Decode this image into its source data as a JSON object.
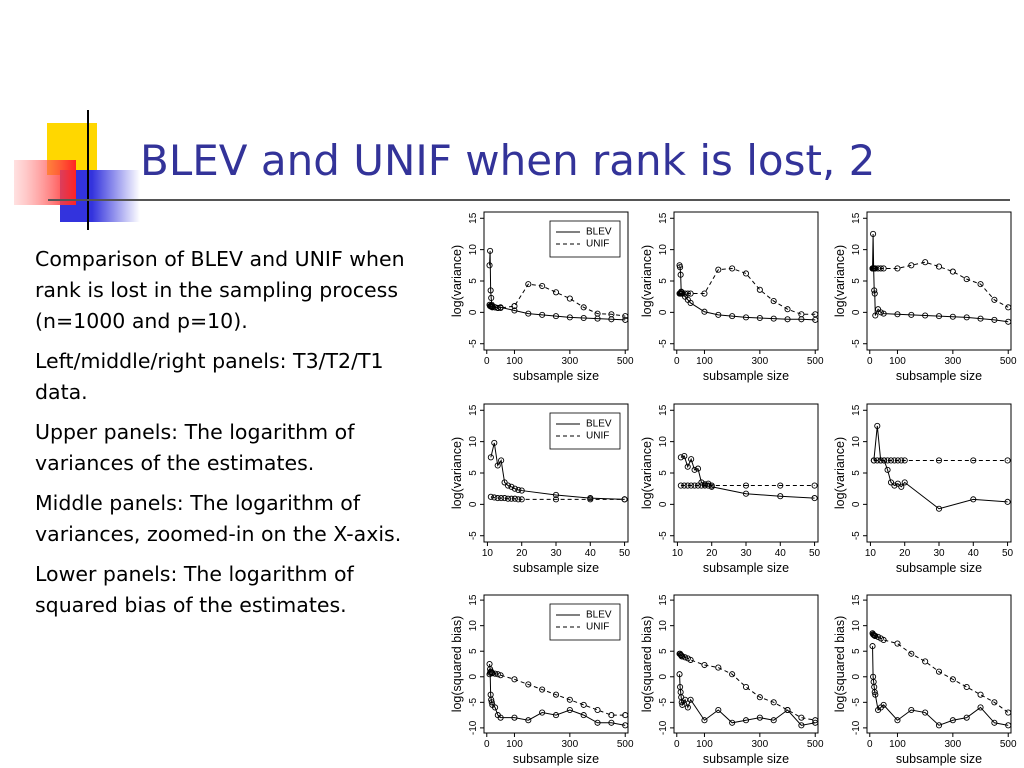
{
  "title": "BLEV and UNIF when rank is lost, 2",
  "paragraphs": [
    "Comparison of BLEV and UNIF when rank is lost in the sampling process (n=1000 and p=10).",
    "Left/middle/right panels: T3/T2/T1 data.",
    "Upper panels: The logarithm of variances of the estimates.",
    "Middle panels: The logarithm of variances, zoomed-in on the X-axis.",
    "Lower panels: The logarithm of squared bias of the estimates."
  ],
  "chart_data": [
    {
      "type": "line",
      "xlabel": "subsample size",
      "ylabel": "log(variance)",
      "x": [
        10,
        12,
        14,
        16,
        18,
        20,
        30,
        40,
        50,
        100,
        150,
        200,
        250,
        300,
        350,
        400,
        450,
        500
      ],
      "xlim": [
        -10,
        510
      ],
      "xticks": [
        0,
        100,
        300,
        500
      ],
      "ylim": [
        -6,
        16
      ],
      "yticks": [
        -5,
        0,
        5,
        10,
        15
      ],
      "series": [
        {
          "name": "BLEV",
          "color": "#000000",
          "dashed": false,
          "values": [
            7.5,
            9.8,
            3.5,
            2.3,
            1.2,
            1.0,
            0.8,
            0.7,
            0.8,
            0.3,
            -0.2,
            -0.4,
            -0.6,
            -0.8,
            -0.9,
            -1.0,
            -1.1,
            -1.2
          ]
        },
        {
          "name": "UNIF",
          "color": "#000000",
          "dashed": true,
          "values": [
            1.2,
            1.0,
            1.0,
            0.9,
            0.9,
            0.8,
            0.8,
            0.7,
            0.7,
            1.0,
            4.5,
            4.2,
            3.2,
            2.2,
            0.8,
            -0.2,
            -0.3,
            -0.6
          ]
        }
      ]
    },
    {
      "type": "line",
      "xlabel": "subsample size",
      "ylabel": "log(variance)",
      "x": [
        10,
        12,
        14,
        16,
        18,
        20,
        30,
        40,
        50,
        100,
        150,
        200,
        250,
        300,
        350,
        400,
        450,
        500
      ],
      "xlim": [
        -10,
        510
      ],
      "xticks": [
        0,
        100,
        300,
        500
      ],
      "ylim": [
        -6,
        16
      ],
      "yticks": [
        -5,
        0,
        5,
        10,
        15
      ],
      "series": [
        {
          "color": "#000000",
          "dashed": false,
          "values": [
            7.5,
            7.2,
            6.0,
            3.3,
            3.2,
            3.0,
            2.5,
            2.0,
            1.5,
            0.1,
            -0.4,
            -0.6,
            -0.8,
            -0.9,
            -1.0,
            -1.1,
            -1.1,
            -1.2
          ]
        },
        {
          "color": "#000000",
          "dashed": true,
          "values": [
            3.0,
            3.0,
            3.0,
            3.0,
            3.0,
            3.0,
            3.0,
            3.0,
            3.0,
            3.0,
            6.8,
            7.0,
            6.2,
            3.6,
            1.8,
            0.5,
            -0.3,
            -0.3
          ]
        }
      ]
    },
    {
      "type": "line",
      "xlabel": "subsample size",
      "ylabel": "log(variance)",
      "x": [
        10,
        12,
        14,
        16,
        18,
        20,
        30,
        40,
        50,
        100,
        150,
        200,
        250,
        300,
        350,
        400,
        450,
        500
      ],
      "xlim": [
        -10,
        510
      ],
      "xticks": [
        0,
        100,
        300,
        500
      ],
      "ylim": [
        -6,
        16
      ],
      "yticks": [
        -5,
        0,
        5,
        10,
        15
      ],
      "series": [
        {
          "color": "#000000",
          "dashed": false,
          "values": [
            7.0,
            12.5,
            7.0,
            3.5,
            3.0,
            -0.5,
            0.5,
            0.0,
            -0.2,
            -0.3,
            -0.4,
            -0.5,
            -0.6,
            -0.7,
            -0.8,
            -1.0,
            -1.2,
            -1.5
          ]
        },
        {
          "color": "#000000",
          "dashed": true,
          "values": [
            7.0,
            7.0,
            7.0,
            7.0,
            7.0,
            7.0,
            7.0,
            7.0,
            7.0,
            7.0,
            7.5,
            8.0,
            7.3,
            6.5,
            5.3,
            4.5,
            2.0,
            0.8
          ]
        }
      ]
    },
    {
      "type": "line",
      "xlabel": "subsample size",
      "ylabel": "log(variance)",
      "x": [
        11,
        12,
        13,
        14,
        15,
        16,
        17,
        18,
        19,
        20,
        30,
        40,
        50
      ],
      "xlim": [
        9,
        51
      ],
      "xticks": [
        10,
        20,
        30,
        40,
        50
      ],
      "ylim": [
        -6,
        16
      ],
      "yticks": [
        -5,
        0,
        5,
        10,
        15
      ],
      "series": [
        {
          "name": "BLEV",
          "color": "#000000",
          "dashed": false,
          "values": [
            7.5,
            9.8,
            6.2,
            7.0,
            3.5,
            3.0,
            2.8,
            2.5,
            2.3,
            2.2,
            1.5,
            1.0,
            0.8
          ]
        },
        {
          "name": "UNIF",
          "color": "#000000",
          "dashed": true,
          "values": [
            1.2,
            1.1,
            1.0,
            1.0,
            1.0,
            0.9,
            0.9,
            0.9,
            0.8,
            0.8,
            0.8,
            0.8,
            0.8
          ]
        }
      ]
    },
    {
      "type": "line",
      "xlabel": "subsample size",
      "ylabel": "log(variance)",
      "x": [
        11,
        12,
        13,
        14,
        15,
        16,
        17,
        18,
        19,
        20,
        30,
        40,
        50
      ],
      "xlim": [
        9,
        51
      ],
      "xticks": [
        10,
        20,
        30,
        40,
        50
      ],
      "ylim": [
        -6,
        16
      ],
      "yticks": [
        -5,
        0,
        5,
        10,
        15
      ],
      "series": [
        {
          "color": "#000000",
          "dashed": false,
          "values": [
            7.5,
            7.7,
            6.0,
            7.2,
            5.5,
            5.7,
            3.5,
            3.2,
            3.3,
            2.8,
            1.7,
            1.3,
            1.0
          ]
        },
        {
          "color": "#000000",
          "dashed": true,
          "values": [
            3.0,
            3.0,
            3.0,
            3.0,
            3.0,
            3.0,
            3.0,
            3.0,
            3.0,
            3.0,
            3.0,
            3.0,
            3.0
          ]
        }
      ]
    },
    {
      "type": "line",
      "xlabel": "subsample size",
      "ylabel": "log(variance)",
      "x": [
        11,
        12,
        13,
        14,
        15,
        16,
        17,
        18,
        19,
        20,
        30,
        40,
        50
      ],
      "xlim": [
        9,
        51
      ],
      "xticks": [
        10,
        20,
        30,
        40,
        50
      ],
      "ylim": [
        -6,
        16
      ],
      "yticks": [
        -5,
        0,
        5,
        10,
        15
      ],
      "series": [
        {
          "color": "#000000",
          "dashed": false,
          "values": [
            7.0,
            12.5,
            7.0,
            7.0,
            5.5,
            3.5,
            3.0,
            3.3,
            2.8,
            3.5,
            -0.7,
            0.8,
            0.4
          ]
        },
        {
          "color": "#000000",
          "dashed": true,
          "values": [
            7.0,
            7.0,
            7.0,
            7.0,
            7.0,
            7.0,
            7.0,
            7.0,
            7.0,
            7.0,
            7.0,
            7.0,
            7.0
          ]
        }
      ]
    },
    {
      "type": "line",
      "xlabel": "subsample size",
      "ylabel": "log(squared bias)",
      "x": [
        10,
        12,
        14,
        16,
        18,
        20,
        30,
        40,
        50,
        100,
        150,
        200,
        250,
        300,
        350,
        400,
        450,
        500
      ],
      "xlim": [
        -10,
        510
      ],
      "xticks": [
        0,
        100,
        300,
        500
      ],
      "ylim": [
        -11,
        16
      ],
      "yticks": [
        -10,
        -5,
        0,
        5,
        10,
        15
      ],
      "series": [
        {
          "name": "BLEV",
          "color": "#000000",
          "dashed": false,
          "values": [
            2.5,
            1.5,
            -3.5,
            -4.5,
            -5.0,
            -5.5,
            -6.0,
            -7.5,
            -8.0,
            -8.0,
            -8.5,
            -7.0,
            -7.5,
            -6.5,
            -7.5,
            -9.0,
            -9.0,
            -9.5
          ]
        },
        {
          "name": "UNIF",
          "color": "#000000",
          "dashed": true,
          "values": [
            0.5,
            0.8,
            1.0,
            1.0,
            0.8,
            0.7,
            0.6,
            0.5,
            0.3,
            -0.5,
            -1.5,
            -2.5,
            -3.5,
            -4.5,
            -5.5,
            -6.5,
            -7.5,
            -7.5
          ]
        }
      ]
    },
    {
      "type": "line",
      "xlabel": "subsample size",
      "ylabel": "log(squared bias)",
      "x": [
        10,
        12,
        14,
        16,
        18,
        20,
        30,
        40,
        50,
        100,
        150,
        200,
        250,
        300,
        350,
        400,
        450,
        500
      ],
      "xlim": [
        -10,
        510
      ],
      "xticks": [
        0,
        100,
        300,
        500
      ],
      "ylim": [
        -11,
        16
      ],
      "yticks": [
        -10,
        -5,
        0,
        5,
        10,
        15
      ],
      "series": [
        {
          "color": "#000000",
          "dashed": false,
          "values": [
            0.5,
            -2.0,
            -3.0,
            -4.0,
            -5.0,
            -5.5,
            -4.5,
            -6.0,
            -4.5,
            -8.5,
            -6.5,
            -9.0,
            -8.5,
            -8.0,
            -8.5,
            -6.5,
            -9.5,
            -9.0
          ]
        },
        {
          "color": "#000000",
          "dashed": true,
          "values": [
            4.5,
            4.5,
            4.3,
            4.2,
            4.0,
            4.0,
            3.8,
            3.6,
            3.3,
            2.3,
            1.8,
            0.5,
            -2.0,
            -4.0,
            -5.0,
            -6.5,
            -8.0,
            -8.5
          ]
        }
      ]
    },
    {
      "type": "line",
      "xlabel": "subsample size",
      "ylabel": "log(squared bias)",
      "x": [
        10,
        12,
        14,
        16,
        18,
        20,
        30,
        40,
        50,
        100,
        150,
        200,
        250,
        300,
        350,
        400,
        450,
        500
      ],
      "xlim": [
        -10,
        510
      ],
      "xticks": [
        0,
        100,
        300,
        500
      ],
      "ylim": [
        -11,
        16
      ],
      "yticks": [
        -10,
        -5,
        0,
        5,
        10,
        15
      ],
      "series": [
        {
          "color": "#000000",
          "dashed": false,
          "values": [
            6.0,
            0.0,
            -1.0,
            -2.0,
            -3.0,
            -3.5,
            -6.5,
            -6.0,
            -5.5,
            -8.5,
            -6.5,
            -7.0,
            -9.5,
            -8.5,
            -8.0,
            -6.0,
            -9.0,
            -9.5
          ]
        },
        {
          "color": "#000000",
          "dashed": true,
          "values": [
            8.5,
            8.3,
            8.2,
            8.1,
            8.0,
            8.0,
            7.8,
            7.5,
            7.2,
            6.5,
            4.5,
            3.0,
            1.0,
            -0.5,
            -2.0,
            -3.5,
            -5.0,
            -7.0
          ]
        }
      ]
    }
  ]
}
